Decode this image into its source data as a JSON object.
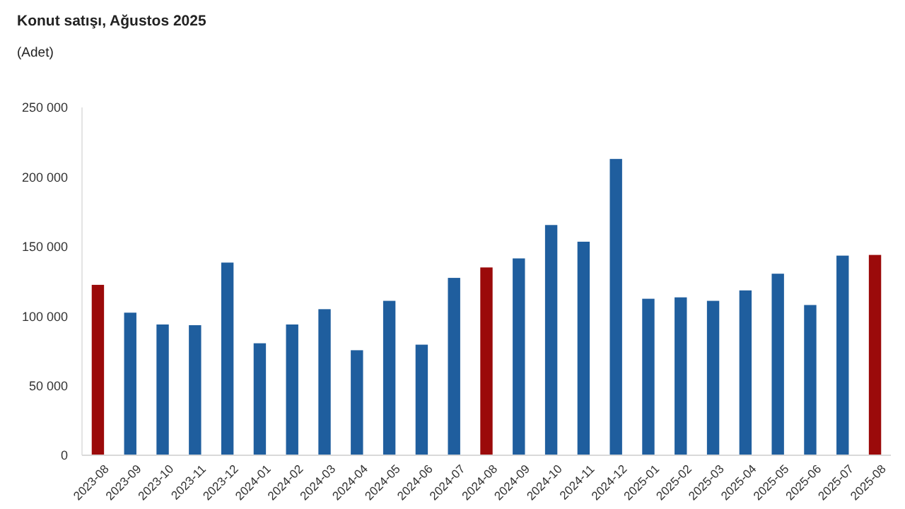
{
  "chart_data": {
    "type": "bar",
    "title": "Konut satışı, Ağustos 2025",
    "subtitle": "(Adet)",
    "categories": [
      "2023-08",
      "2023-09",
      "2023-10",
      "2023-11",
      "2023-12",
      "2024-01",
      "2024-02",
      "2024-03",
      "2024-04",
      "2024-05",
      "2024-06",
      "2024-07",
      "2024-08",
      "2024-09",
      "2024-10",
      "2024-11",
      "2024-12",
      "2025-01",
      "2025-02",
      "2025-03",
      "2025-04",
      "2025-05",
      "2025-06",
      "2025-07",
      "2025-08"
    ],
    "values": [
      122500,
      102500,
      94000,
      93500,
      138500,
      80500,
      94000,
      105000,
      75500,
      111000,
      79500,
      127500,
      135000,
      141500,
      165500,
      153500,
      213000,
      112500,
      113500,
      111000,
      118500,
      130500,
      108000,
      143500,
      144000
    ],
    "colors": [
      "#9b0a0a",
      "#1f5e9e",
      "#1f5e9e",
      "#1f5e9e",
      "#1f5e9e",
      "#1f5e9e",
      "#1f5e9e",
      "#1f5e9e",
      "#1f5e9e",
      "#1f5e9e",
      "#1f5e9e",
      "#1f5e9e",
      "#9b0a0a",
      "#1f5e9e",
      "#1f5e9e",
      "#1f5e9e",
      "#1f5e9e",
      "#1f5e9e",
      "#1f5e9e",
      "#1f5e9e",
      "#1f5e9e",
      "#1f5e9e",
      "#1f5e9e",
      "#1f5e9e",
      "#9b0a0a"
    ],
    "ylim": [
      0,
      250000
    ],
    "yticks": [
      0,
      {
        "value": 50000,
        "label": "50 000"
      },
      {
        "value": 100000,
        "label": "100 000"
      },
      {
        "value": 150000,
        "label": "150 000"
      },
      {
        "value": 200000,
        "label": "200 000"
      },
      {
        "value": 250000,
        "label": "250 000"
      }
    ]
  }
}
